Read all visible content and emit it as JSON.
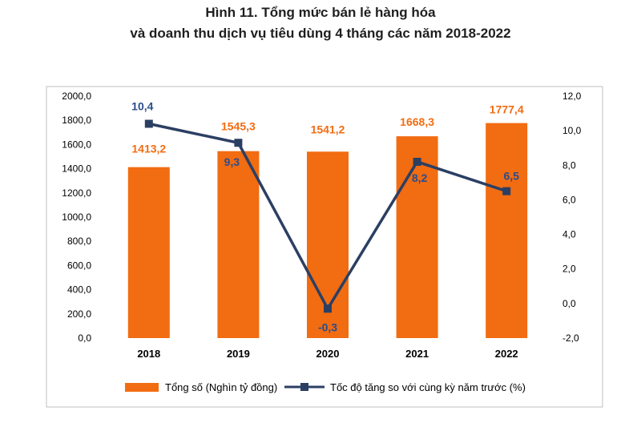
{
  "title_line1": "Hình 11. Tổng mức bán lẻ hàng hóa",
  "title_line2": "và doanh thu dịch vụ tiêu dùng 4 tháng các năm 2018-2022",
  "colors": {
    "bar": "#f26c12",
    "line": "#2b3f63",
    "bar_label": "#f26c12",
    "line_label": "#2b4d8a",
    "axis_text": "#000000",
    "frame": "#bfbfbf"
  },
  "chart_data": {
    "type": "bar+line",
    "categories": [
      "2018",
      "2019",
      "2020",
      "2021",
      "2022"
    ],
    "series": [
      {
        "name": "Tổng số (Nghìn tỷ đồng)",
        "type": "bar",
        "axis": "left",
        "values": [
          1413.2,
          1545.3,
          1541.2,
          1668.3,
          1777.4
        ],
        "labels": [
          "1413,2",
          "1545,3",
          "1541,2",
          "1668,3",
          "1777,4"
        ]
      },
      {
        "name": "Tốc độ tăng so với cùng kỳ năm trước (%)",
        "type": "line",
        "axis": "right",
        "values": [
          10.4,
          9.3,
          -0.3,
          8.2,
          6.5
        ],
        "labels": [
          "10,4",
          "9,3",
          "-0,3",
          "8,2",
          "6,5"
        ]
      }
    ],
    "y_left": {
      "min": 0,
      "max": 2000,
      "ticks": [
        "0,0",
        "200,0",
        "400,0",
        "600,0",
        "800,0",
        "1000,0",
        "1200,0",
        "1400,0",
        "1600,0",
        "1800,0",
        "2000,0"
      ]
    },
    "y_right": {
      "min": -2,
      "max": 12,
      "ticks": [
        "-2,0",
        "0,0",
        "2,0",
        "4,0",
        "6,0",
        "8,0",
        "10,0",
        "12,0"
      ]
    },
    "grid": false,
    "legend_position": "bottom"
  }
}
